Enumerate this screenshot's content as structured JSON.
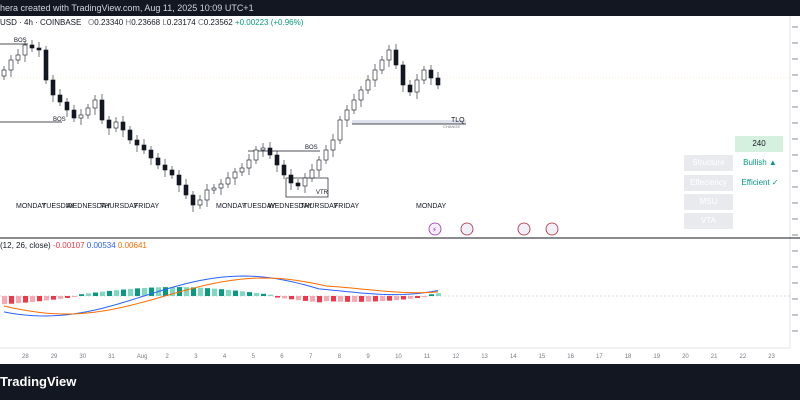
{
  "header": {
    "creator_text": "hera created with TradingView.com, Aug 11, 2025 10:09 UTC+1"
  },
  "symbol": {
    "pair": "USD · 4h · COINBASE",
    "open_label": "O",
    "open": "0.23340",
    "high_label": "H",
    "high": "0.23668",
    "low_label": "L",
    "low": "0.23174",
    "close_label": "C",
    "close": "0.23562",
    "change": "+0.00223 (+0.96%)"
  },
  "chart_labels": {
    "bos_1": "BOS",
    "bos_2": "BOS",
    "bos_3": "BOS",
    "vtr": "VTR",
    "tlq": "TLQ",
    "tlq_sub": "CHANGE"
  },
  "day_labels": [
    "MONDAY",
    "TUESDAY",
    "WEDNESDAY",
    "THURSDAY",
    "FRIDAY",
    "MONDAY",
    "TUESDAY",
    "WEDNESDAY",
    "THURSDAY",
    "FRIDAY",
    "MONDAY"
  ],
  "macd": {
    "label": "(12, 26, close)",
    "hist": "-0.00107",
    "macd": "0.00534",
    "signal": "0.00641"
  },
  "panel": {
    "timeframe": "240",
    "rows": [
      {
        "key": "Structure",
        "value": "Bullish ▲"
      },
      {
        "key": "Effeciency",
        "value": "Efficient ✓"
      },
      {
        "key": "MSU",
        "value": ""
      },
      {
        "key": "VTA",
        "value": ""
      }
    ]
  },
  "x_axis": [
    "28",
    "29",
    "30",
    "31",
    "Aug",
    "2",
    "3",
    "4",
    "5",
    "6",
    "7",
    "8",
    "9",
    "10",
    "11",
    "12",
    "13",
    "14",
    "15",
    "16",
    "17",
    "18",
    "19",
    "20",
    "21",
    "22",
    "23"
  ],
  "footer": {
    "logo": "TradingView"
  },
  "colors": {
    "bg": "#ffffff",
    "dark": "#131722",
    "up": "#089981",
    "down": "#f23645",
    "macd": "#2962ff",
    "signal": "#ff6d00"
  }
}
